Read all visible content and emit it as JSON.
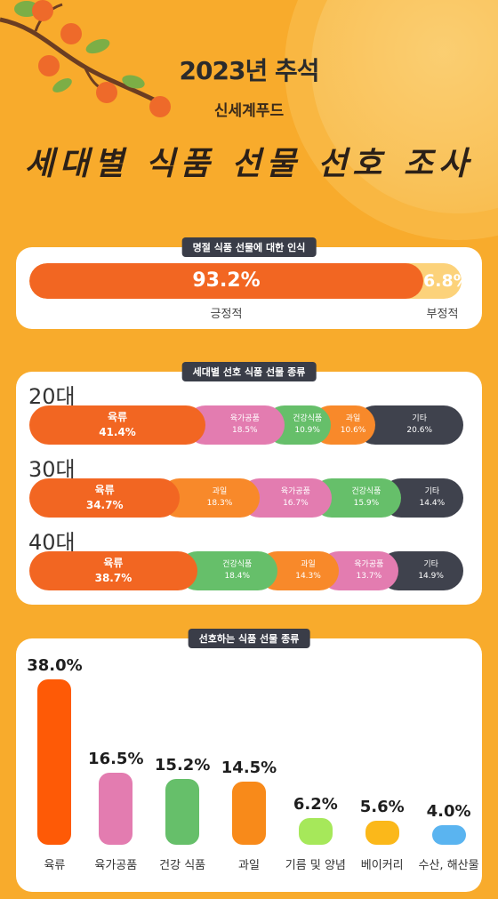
{
  "header": {
    "year_title": "2023년 추석",
    "brand": "신세계푸드",
    "main_title": "세대별 식품 선물 선호 조사"
  },
  "colors": {
    "background": "#f8ab2c",
    "meat": "#f26622",
    "processed_meat": "#e37cb0",
    "health_food": "#66bf6a",
    "fruit": "#f8892a",
    "other": "#3f424d",
    "oil_seasoning": "#a6e85a",
    "bakery": "#fbb81a",
    "seafood": "#5ab4f0"
  },
  "perception": {
    "label": "명절 식품 선물에 대한 인식",
    "positive": {
      "value": 93.2,
      "display": "93.2%",
      "label": "긍정적"
    },
    "negative": {
      "value": 6.8,
      "display": "6.8%",
      "label": "부정적"
    }
  },
  "generation": {
    "label": "세대별 선호 식품 선물 종류",
    "groups": [
      {
        "age": "20대",
        "segments": [
          {
            "name": "육류",
            "value": 41.4,
            "display": "41.4%",
            "color": "#f26622",
            "big": true
          },
          {
            "name": "육가공품",
            "value": 18.5,
            "display": "18.5%",
            "color": "#e37cb0"
          },
          {
            "name": "건강식품",
            "value": 10.9,
            "display": "10.9%",
            "color": "#66bf6a"
          },
          {
            "name": "과일",
            "value": 10.6,
            "display": "10.6%",
            "color": "#f8892a"
          },
          {
            "name": "기타",
            "value": 20.6,
            "display": "20.6%",
            "color": "#3f424d"
          }
        ]
      },
      {
        "age": "30대",
        "segments": [
          {
            "name": "육류",
            "value": 34.7,
            "display": "34.7%",
            "color": "#f26622",
            "big": true
          },
          {
            "name": "과일",
            "value": 18.3,
            "display": "18.3%",
            "color": "#f8892a"
          },
          {
            "name": "육가공품",
            "value": 16.7,
            "display": "16.7%",
            "color": "#e37cb0"
          },
          {
            "name": "건강식품",
            "value": 15.9,
            "display": "15.9%",
            "color": "#66bf6a"
          },
          {
            "name": "기타",
            "value": 14.4,
            "display": "14.4%",
            "color": "#3f424d"
          }
        ]
      },
      {
        "age": "40대",
        "segments": [
          {
            "name": "육류",
            "value": 38.7,
            "display": "38.7%",
            "color": "#f26622",
            "big": true
          },
          {
            "name": "건강식품",
            "value": 18.4,
            "display": "18.4%",
            "color": "#66bf6a"
          },
          {
            "name": "과일",
            "value": 14.3,
            "display": "14.3%",
            "color": "#f8892a"
          },
          {
            "name": "육가공품",
            "value": 13.7,
            "display": "13.7%",
            "color": "#e37cb0"
          },
          {
            "name": "기타",
            "value": 14.9,
            "display": "14.9%",
            "color": "#3f424d"
          }
        ]
      }
    ]
  },
  "chart_data": {
    "type": "bar",
    "title": "선호하는 식품 선물 종류",
    "categories": [
      "육류",
      "육가공품",
      "건강 식품",
      "과일",
      "기름 및 양념",
      "베이커리",
      "수산, 해산물"
    ],
    "values": [
      38.0,
      16.5,
      15.2,
      14.5,
      6.2,
      5.6,
      4.0
    ],
    "value_labels": [
      "38.0%",
      "16.5%",
      "15.2%",
      "14.5%",
      "6.2%",
      "5.6%",
      "4.0%"
    ],
    "colors": [
      "#fe5a06",
      "#e37cb0",
      "#66bf6a",
      "#f88a1a",
      "#a6e85a",
      "#fbb81a",
      "#5ab4f0"
    ],
    "xlabel": "",
    "ylabel": "",
    "ylim": [
      0,
      38.0
    ],
    "grid": false
  }
}
